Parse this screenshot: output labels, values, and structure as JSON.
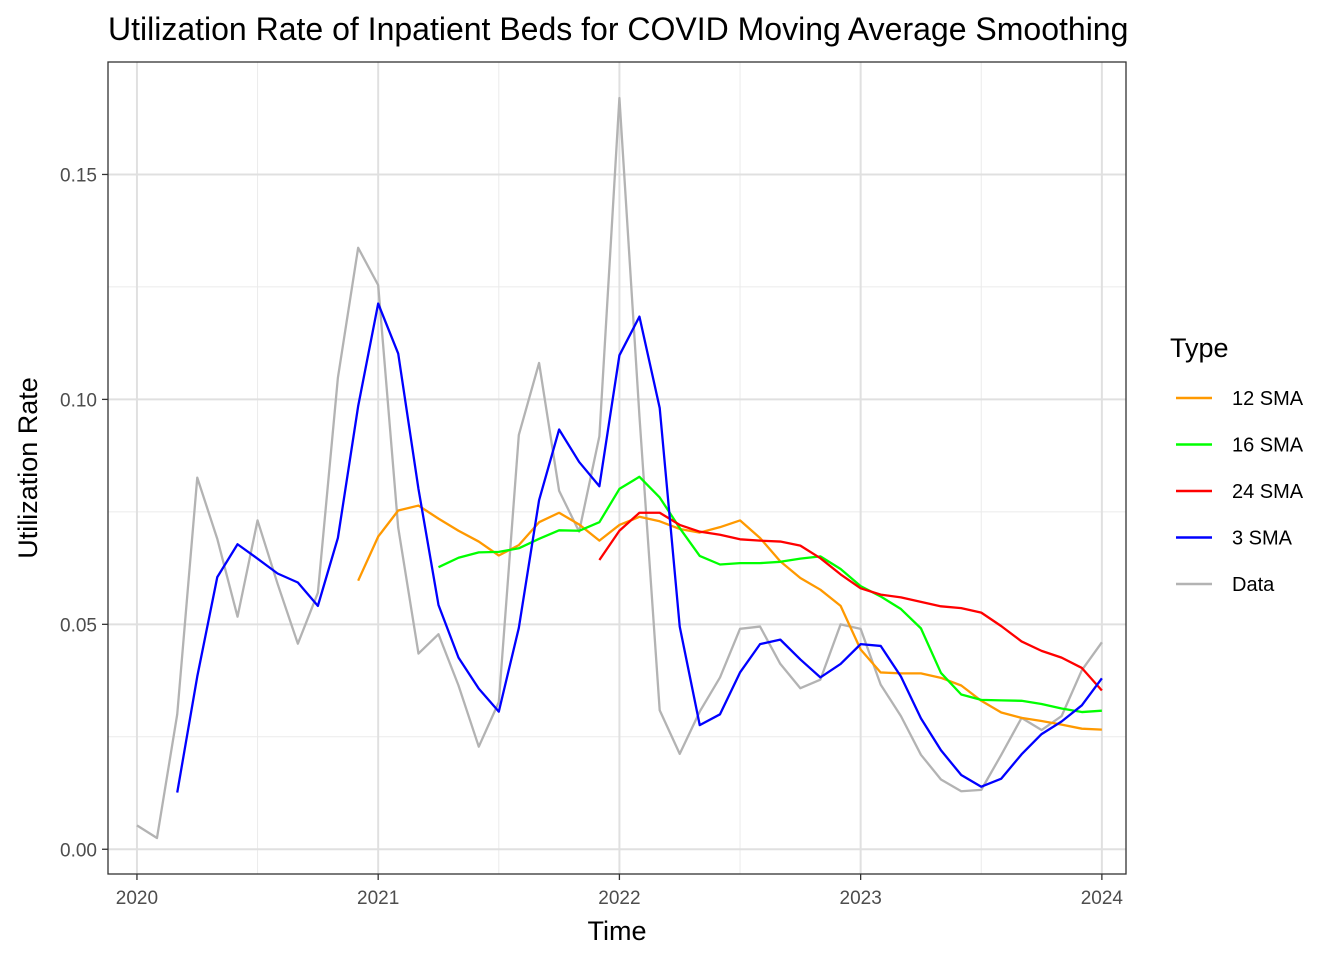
{
  "chart_data": {
    "type": "line",
    "title": "Utilization Rate of Inpatient Beds for COVID Moving Average Smoothing",
    "xlabel": "Time",
    "ylabel": "Utilization Rate",
    "xlim": [
      2019.88,
      2024.1
    ],
    "ylim": [
      -0.0055,
      0.175
    ],
    "x_ticks": [
      2020,
      2021,
      2022,
      2023,
      2024
    ],
    "x_tick_labels": [
      "2020",
      "2021",
      "2022",
      "2023",
      "2024"
    ],
    "y_ticks": [
      0.0,
      0.05,
      0.1,
      0.15
    ],
    "y_tick_labels": [
      "0.00",
      "0.05",
      "0.10",
      "0.15"
    ],
    "grid": true,
    "legend": {
      "title": "Type",
      "position": "right",
      "entries": [
        {
          "label": "12 SMA",
          "color": "#ff9900"
        },
        {
          "label": "16 SMA",
          "color": "#00ff00"
        },
        {
          "label": "24 SMA",
          "color": "#ff0000"
        },
        {
          "label": "3 SMA",
          "color": "#0000ff"
        },
        {
          "label": "Data",
          "color": "#b3b3b3"
        }
      ]
    },
    "series": [
      {
        "name": "Data",
        "color": "#b3b3b3",
        "points": [
          [
            2020.0,
            0.0053
          ],
          [
            2020.083,
            0.0025
          ],
          [
            2020.167,
            0.03
          ],
          [
            2020.25,
            0.0826
          ],
          [
            2020.333,
            0.069
          ],
          [
            2020.417,
            0.0517
          ],
          [
            2020.5,
            0.0731
          ],
          [
            2020.583,
            0.059
          ],
          [
            2020.667,
            0.0457
          ],
          [
            2020.75,
            0.057
          ],
          [
            2020.833,
            0.1048
          ],
          [
            2020.917,
            0.1337
          ],
          [
            2021.0,
            0.1254
          ],
          [
            2021.083,
            0.0715
          ],
          [
            2021.167,
            0.0435
          ],
          [
            2021.25,
            0.0478
          ],
          [
            2021.333,
            0.0364
          ],
          [
            2021.417,
            0.0228
          ],
          [
            2021.5,
            0.0327
          ],
          [
            2021.583,
            0.0921
          ],
          [
            2021.667,
            0.1081
          ],
          [
            2021.75,
            0.0797
          ],
          [
            2021.833,
            0.0706
          ],
          [
            2021.917,
            0.0918
          ],
          [
            2022.0,
            0.167
          ],
          [
            2022.083,
            0.0963
          ],
          [
            2022.167,
            0.0309
          ],
          [
            2022.25,
            0.0212
          ],
          [
            2022.333,
            0.0306
          ],
          [
            2022.417,
            0.0382
          ],
          [
            2022.5,
            0.049
          ],
          [
            2022.583,
            0.0495
          ],
          [
            2022.667,
            0.0412
          ],
          [
            2022.75,
            0.0358
          ],
          [
            2022.833,
            0.0377
          ],
          [
            2022.917,
            0.05
          ],
          [
            2023.0,
            0.049
          ],
          [
            2023.083,
            0.0366
          ],
          [
            2023.167,
            0.0296
          ],
          [
            2023.25,
            0.021
          ],
          [
            2023.333,
            0.0155
          ],
          [
            2023.417,
            0.0129
          ],
          [
            2023.5,
            0.0132
          ],
          [
            2023.583,
            0.021
          ],
          [
            2023.667,
            0.0292
          ],
          [
            2023.75,
            0.0265
          ],
          [
            2023.833,
            0.0296
          ],
          [
            2023.917,
            0.0398
          ],
          [
            2024.0,
            0.046
          ]
        ]
      },
      {
        "name": "12 SMA",
        "color": "#ff9900",
        "points": [
          [
            2020.917,
            0.0597
          ],
          [
            2021.0,
            0.0695
          ],
          [
            2021.083,
            0.0753
          ],
          [
            2021.167,
            0.0764
          ],
          [
            2021.25,
            0.0735
          ],
          [
            2021.333,
            0.0708
          ],
          [
            2021.417,
            0.0684
          ],
          [
            2021.5,
            0.0653
          ],
          [
            2021.583,
            0.0676
          ],
          [
            2021.667,
            0.0727
          ],
          [
            2021.75,
            0.0748
          ],
          [
            2021.833,
            0.0722
          ],
          [
            2021.917,
            0.0686
          ],
          [
            2022.0,
            0.0721
          ],
          [
            2022.083,
            0.0739
          ],
          [
            2022.167,
            0.0729
          ],
          [
            2022.25,
            0.0712
          ],
          [
            2022.333,
            0.0704
          ],
          [
            2022.417,
            0.0716
          ],
          [
            2022.5,
            0.0731
          ],
          [
            2022.583,
            0.0692
          ],
          [
            2022.667,
            0.064
          ],
          [
            2022.75,
            0.0603
          ],
          [
            2022.833,
            0.0577
          ],
          [
            2022.917,
            0.0541
          ],
          [
            2023.0,
            0.0444
          ],
          [
            2023.083,
            0.0393
          ],
          [
            2023.167,
            0.0391
          ],
          [
            2023.25,
            0.0391
          ],
          [
            2023.333,
            0.0381
          ],
          [
            2023.417,
            0.0364
          ],
          [
            2023.5,
            0.033
          ],
          [
            2023.583,
            0.0304
          ],
          [
            2023.667,
            0.0292
          ],
          [
            2023.75,
            0.0285
          ],
          [
            2023.833,
            0.0277
          ],
          [
            2023.917,
            0.0268
          ],
          [
            2024.0,
            0.0266
          ]
        ]
      },
      {
        "name": "16 SMA",
        "color": "#00ff00",
        "points": [
          [
            2021.25,
            0.0627
          ],
          [
            2021.333,
            0.0648
          ],
          [
            2021.417,
            0.066
          ],
          [
            2021.5,
            0.0661
          ],
          [
            2021.583,
            0.0669
          ],
          [
            2021.667,
            0.069
          ],
          [
            2021.75,
            0.0709
          ],
          [
            2021.833,
            0.0708
          ],
          [
            2021.917,
            0.0727
          ],
          [
            2022.0,
            0.0801
          ],
          [
            2022.083,
            0.0828
          ],
          [
            2022.167,
            0.0782
          ],
          [
            2022.25,
            0.0714
          ],
          [
            2022.333,
            0.0652
          ],
          [
            2022.417,
            0.0633
          ],
          [
            2022.5,
            0.0636
          ],
          [
            2022.583,
            0.0636
          ],
          [
            2022.667,
            0.0639
          ],
          [
            2022.75,
            0.0646
          ],
          [
            2022.833,
            0.0651
          ],
          [
            2022.917,
            0.0623
          ],
          [
            2023.0,
            0.0585
          ],
          [
            2023.083,
            0.0562
          ],
          [
            2023.167,
            0.0534
          ],
          [
            2023.25,
            0.0491
          ],
          [
            2023.333,
            0.0392
          ],
          [
            2023.417,
            0.0344
          ],
          [
            2023.5,
            0.0332
          ],
          [
            2023.583,
            0.0331
          ],
          [
            2023.667,
            0.033
          ],
          [
            2023.75,
            0.0323
          ],
          [
            2023.833,
            0.0313
          ],
          [
            2023.917,
            0.0305
          ],
          [
            2024.0,
            0.0308
          ]
        ]
      },
      {
        "name": "24 SMA",
        "color": "#ff0000",
        "points": [
          [
            2021.917,
            0.0643
          ],
          [
            2022.0,
            0.0708
          ],
          [
            2022.083,
            0.0748
          ],
          [
            2022.167,
            0.0748
          ],
          [
            2022.25,
            0.0721
          ],
          [
            2022.333,
            0.0706
          ],
          [
            2022.417,
            0.0699
          ],
          [
            2022.5,
            0.0689
          ],
          [
            2022.583,
            0.0686
          ],
          [
            2022.667,
            0.0684
          ],
          [
            2022.75,
            0.0675
          ],
          [
            2022.833,
            0.0647
          ],
          [
            2022.917,
            0.0611
          ],
          [
            2023.0,
            0.058
          ],
          [
            2023.083,
            0.0566
          ],
          [
            2023.167,
            0.056
          ],
          [
            2023.25,
            0.055
          ],
          [
            2023.333,
            0.054
          ],
          [
            2023.417,
            0.0536
          ],
          [
            2023.5,
            0.0526
          ],
          [
            2023.583,
            0.0496
          ],
          [
            2023.667,
            0.0462
          ],
          [
            2023.75,
            0.0441
          ],
          [
            2023.833,
            0.0426
          ],
          [
            2023.917,
            0.0403
          ],
          [
            2024.0,
            0.0353
          ]
        ]
      },
      {
        "name": "3 SMA",
        "color": "#0000ff",
        "points": [
          [
            2020.167,
            0.0126
          ],
          [
            2020.25,
            0.0384
          ],
          [
            2020.333,
            0.0605
          ],
          [
            2020.417,
            0.0678
          ],
          [
            2020.5,
            0.0646
          ],
          [
            2020.583,
            0.0613
          ],
          [
            2020.667,
            0.0593
          ],
          [
            2020.75,
            0.0541
          ],
          [
            2020.833,
            0.0692
          ],
          [
            2020.917,
            0.0985
          ],
          [
            2021.0,
            0.1213
          ],
          [
            2021.083,
            0.1102
          ],
          [
            2021.167,
            0.0801
          ],
          [
            2021.25,
            0.0543
          ],
          [
            2021.333,
            0.0426
          ],
          [
            2021.417,
            0.0357
          ],
          [
            2021.5,
            0.0306
          ],
          [
            2021.583,
            0.0492
          ],
          [
            2021.667,
            0.0776
          ],
          [
            2021.75,
            0.0933
          ],
          [
            2021.833,
            0.0861
          ],
          [
            2021.917,
            0.0807
          ],
          [
            2022.0,
            0.1098
          ],
          [
            2022.083,
            0.1184
          ],
          [
            2022.167,
            0.0981
          ],
          [
            2022.25,
            0.0495
          ],
          [
            2022.333,
            0.0276
          ],
          [
            2022.417,
            0.03
          ],
          [
            2022.5,
            0.0393
          ],
          [
            2022.583,
            0.0456
          ],
          [
            2022.667,
            0.0466
          ],
          [
            2022.75,
            0.0422
          ],
          [
            2022.833,
            0.0382
          ],
          [
            2022.917,
            0.0412
          ],
          [
            2023.0,
            0.0456
          ],
          [
            2023.083,
            0.0452
          ],
          [
            2023.167,
            0.0384
          ],
          [
            2023.25,
            0.0291
          ],
          [
            2023.333,
            0.022
          ],
          [
            2023.417,
            0.0165
          ],
          [
            2023.5,
            0.0139
          ],
          [
            2023.583,
            0.0157
          ],
          [
            2023.667,
            0.0211
          ],
          [
            2023.75,
            0.0256
          ],
          [
            2023.833,
            0.0284
          ],
          [
            2023.917,
            0.032
          ],
          [
            2024.0,
            0.038
          ]
        ]
      }
    ]
  }
}
